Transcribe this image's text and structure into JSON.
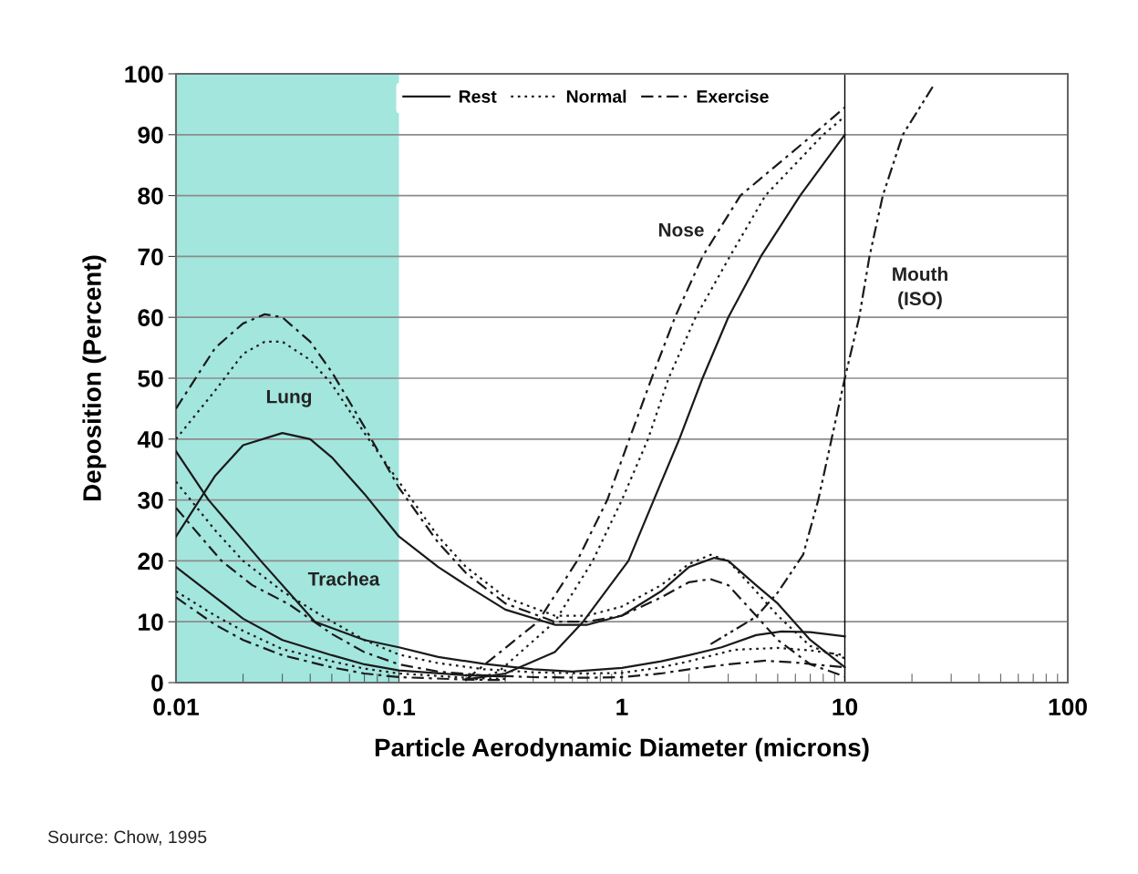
{
  "chart_data": {
    "type": "line",
    "xlabel": "Particle Aerodynamic Diameter (microns)",
    "ylabel": "Deposition (Percent)",
    "log": "x",
    "xlim": [
      0.01,
      100
    ],
    "xticks": [
      0.01,
      0.1,
      1,
      10,
      100
    ],
    "ylim": [
      0,
      100
    ],
    "yticks": [
      0,
      10,
      20,
      30,
      40,
      50,
      60,
      70,
      80,
      90,
      100
    ],
    "grid": "y",
    "legend": "top",
    "bands": [
      {
        "axis": "x",
        "from": 0.01,
        "to": 0.1,
        "color": "#a3e6de"
      }
    ],
    "ref_lines": [
      {
        "axis": "x",
        "value": 10,
        "color": "#000000"
      }
    ],
    "annotations": [
      "Lung",
      "Trachea",
      "Nose",
      "Mouth\n(ISO)",
      "Source: Chow, 1995"
    ],
    "series": [
      {
        "name": "Rest",
        "line_style": "solid",
        "color": "#1a1a1a",
        "x": [
          0.01,
          0.015,
          0.02,
          0.03,
          0.04,
          0.05,
          0.07,
          0.1,
          0.15,
          0.2,
          0.3,
          0.5,
          0.7,
          1,
          1.5,
          2,
          2.6,
          3,
          4,
          5,
          7,
          10
        ],
        "values": [
          24,
          34,
          39,
          41,
          40,
          37,
          31,
          24,
          19,
          16,
          12,
          9.5,
          9.5,
          11,
          15,
          19,
          20.5,
          20,
          16,
          13,
          7,
          2.5
        ]
      },
      {
        "name": "Normal",
        "line_style": "dotted",
        "color": "#1a1a1a",
        "x": [
          0.01,
          0.015,
          0.02,
          0.025,
          0.03,
          0.04,
          0.05,
          0.07,
          0.1,
          0.15,
          0.2,
          0.3,
          0.5,
          0.7,
          1,
          1.5,
          2,
          2.5,
          3,
          4,
          5,
          7,
          10
        ],
        "values": [
          40,
          48,
          54,
          56,
          56,
          53,
          49,
          41,
          33,
          24,
          19,
          14,
          11,
          11,
          12.5,
          16,
          19.5,
          21,
          20,
          15,
          11,
          6,
          4
        ]
      },
      {
        "name": "Exercise",
        "line_style": "dashdot",
        "color": "#1a1a1a",
        "x": [
          0.01,
          0.015,
          0.02,
          0.025,
          0.03,
          0.04,
          0.05,
          0.07,
          0.1,
          0.15,
          0.2,
          0.3,
          0.5,
          0.7,
          1,
          1.5,
          2,
          2.5,
          3,
          4,
          5,
          7,
          10
        ],
        "values": [
          45,
          55,
          59,
          60.5,
          60,
          56,
          51,
          42,
          32,
          23,
          18,
          13,
          10,
          10,
          11,
          14,
          16.5,
          17,
          16,
          11,
          7,
          3,
          1
        ]
      },
      {
        "line_style": "solid",
        "color": "#1a1a1a",
        "x": [
          0.2,
          0.3,
          0.5,
          0.67,
          1.07,
          1.39,
          1.81,
          2.3,
          3.0,
          4.2,
          6.3,
          10
        ],
        "values": [
          0.5,
          1.5,
          5,
          10,
          20,
          30,
          40,
          50,
          60,
          70,
          80,
          90
        ]
      },
      {
        "line_style": "dotted",
        "color": "#1a1a1a",
        "x": [
          0.22,
          0.28,
          0.5,
          0.74,
          1.0,
          1.31,
          1.62,
          2.14,
          3.05,
          4.4,
          8.0,
          10
        ],
        "values": [
          0.5,
          1.8,
          10,
          20,
          30,
          40,
          50,
          60,
          70,
          80,
          90,
          93
        ]
      },
      {
        "line_style": "dashdot",
        "color": "#1a1a1a",
        "x": [
          0.2,
          0.245,
          0.42,
          0.63,
          0.86,
          1.08,
          1.36,
          1.73,
          2.3,
          3.4,
          7.2,
          10
        ],
        "values": [
          0.5,
          3.1,
          10,
          20,
          30,
          40,
          50,
          60,
          70,
          80,
          90,
          94.5
        ]
      },
      {
        "line_style": "solid",
        "color": "#1a1a1a",
        "x": [
          0.01,
          0.014,
          0.024,
          0.042,
          0.07,
          0.1,
          0.15,
          0.24,
          0.4,
          0.6,
          1,
          1.5,
          2,
          2.8,
          4,
          5.2,
          7,
          10
        ],
        "values": [
          38,
          30,
          20,
          10,
          7,
          5.8,
          4.2,
          3.1,
          2.2,
          1.8,
          2.4,
          3.5,
          4.5,
          5.8,
          7.8,
          8.4,
          8.3,
          7.6
        ]
      },
      {
        "line_style": "dotted",
        "color": "#1a1a1a",
        "x": [
          0.01,
          0.015,
          0.02,
          0.03,
          0.045,
          0.07,
          0.1,
          0.15,
          0.24,
          0.4,
          0.7,
          1,
          1.5,
          2,
          3.2,
          5,
          7,
          10
        ],
        "values": [
          33,
          25,
          20,
          15,
          11,
          7,
          4.6,
          3.2,
          2.2,
          1.7,
          1.5,
          1.6,
          2.5,
          3.5,
          5.4,
          5.7,
          5.3,
          4.5
        ]
      },
      {
        "line_style": "dashdot",
        "color": "#1a1a1a",
        "x": [
          0.01,
          0.016,
          0.022,
          0.032,
          0.05,
          0.07,
          0.1,
          0.15,
          0.24,
          0.4,
          0.7,
          1,
          1.5,
          2,
          3,
          4.4,
          6,
          10
        ],
        "values": [
          28.7,
          20,
          16,
          12.9,
          8,
          5,
          3,
          1.8,
          1.2,
          0.9,
          0.8,
          0.9,
          1.5,
          2.2,
          3,
          3.6,
          3.3,
          2.5
        ]
      },
      {
        "line_style": "solid",
        "color": "#1a1a1a",
        "x": [
          0.01,
          0.015,
          0.02,
          0.03,
          0.05,
          0.07,
          0.1,
          0.2,
          0.3
        ],
        "values": [
          19,
          14,
          10.5,
          7,
          4.5,
          3,
          2,
          1.2,
          1
        ]
      },
      {
        "line_style": "dotted",
        "color": "#1a1a1a",
        "x": [
          0.01,
          0.015,
          0.02,
          0.03,
          0.05,
          0.07,
          0.1,
          0.2,
          0.3
        ],
        "values": [
          15,
          11,
          8.5,
          5.5,
          3.5,
          2.3,
          1.5,
          0.8,
          0.6
        ]
      },
      {
        "line_style": "dashdot",
        "color": "#1a1a1a",
        "x": [
          0.01,
          0.015,
          0.02,
          0.03,
          0.05,
          0.07,
          0.1,
          0.2,
          0.3
        ],
        "values": [
          14,
          9.5,
          7,
          4.5,
          2.5,
          1.5,
          0.9,
          0.5,
          0.4
        ]
      },
      {
        "line_style": "dashdotdot",
        "color": "#1a1a1a",
        "x": [
          2.5,
          4.0,
          5.0,
          6.5,
          7.6,
          8.6,
          10,
          11.6,
          12.9,
          14.8,
          18.2,
          24.9
        ],
        "values": [
          6.3,
          10.8,
          14.8,
          21,
          30,
          39,
          50,
          60,
          70,
          80,
          90,
          98
        ]
      }
    ]
  }
}
